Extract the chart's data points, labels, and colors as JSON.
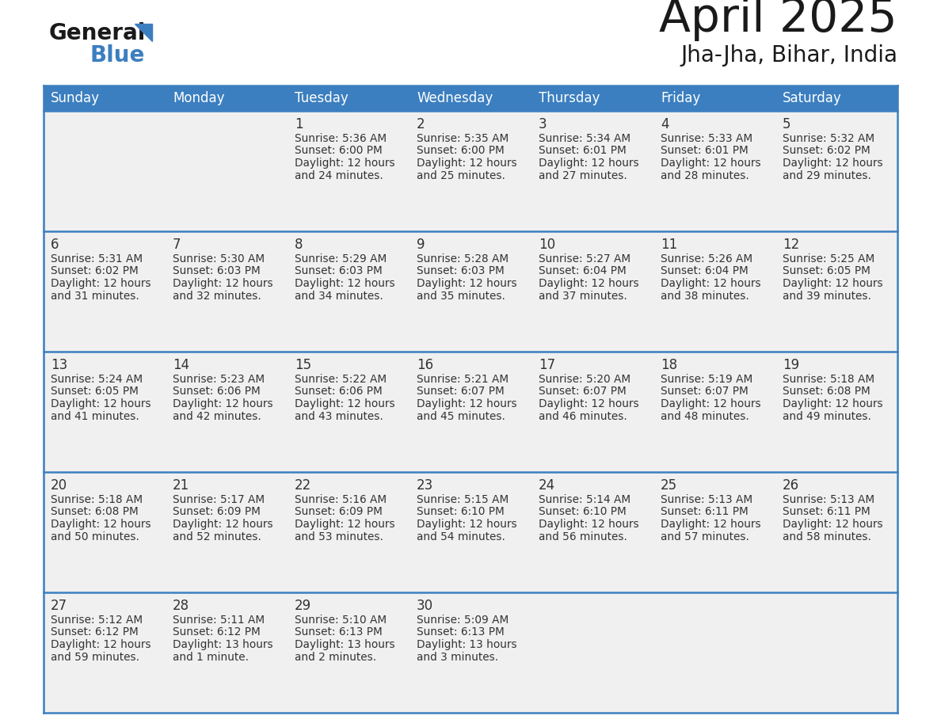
{
  "title": "April 2025",
  "subtitle": "Jha-Jha, Bihar, India",
  "header_bg": "#3c7fc0",
  "header_text_color": "#ffffff",
  "day_names": [
    "Sunday",
    "Monday",
    "Tuesday",
    "Wednesday",
    "Thursday",
    "Friday",
    "Saturday"
  ],
  "cell_bg": "#f0f0f0",
  "border_color": "#3c7fc0",
  "text_color": "#333333",
  "days": [
    {
      "day": 1,
      "col": 2,
      "row": 0,
      "sunrise": "5:36 AM",
      "sunset": "6:00 PM",
      "daylight_h": "12 hours",
      "daylight_m": "and 24 minutes."
    },
    {
      "day": 2,
      "col": 3,
      "row": 0,
      "sunrise": "5:35 AM",
      "sunset": "6:00 PM",
      "daylight_h": "12 hours",
      "daylight_m": "and 25 minutes."
    },
    {
      "day": 3,
      "col": 4,
      "row": 0,
      "sunrise": "5:34 AM",
      "sunset": "6:01 PM",
      "daylight_h": "12 hours",
      "daylight_m": "and 27 minutes."
    },
    {
      "day": 4,
      "col": 5,
      "row": 0,
      "sunrise": "5:33 AM",
      "sunset": "6:01 PM",
      "daylight_h": "12 hours",
      "daylight_m": "and 28 minutes."
    },
    {
      "day": 5,
      "col": 6,
      "row": 0,
      "sunrise": "5:32 AM",
      "sunset": "6:02 PM",
      "daylight_h": "12 hours",
      "daylight_m": "and 29 minutes."
    },
    {
      "day": 6,
      "col": 0,
      "row": 1,
      "sunrise": "5:31 AM",
      "sunset": "6:02 PM",
      "daylight_h": "12 hours",
      "daylight_m": "and 31 minutes."
    },
    {
      "day": 7,
      "col": 1,
      "row": 1,
      "sunrise": "5:30 AM",
      "sunset": "6:03 PM",
      "daylight_h": "12 hours",
      "daylight_m": "and 32 minutes."
    },
    {
      "day": 8,
      "col": 2,
      "row": 1,
      "sunrise": "5:29 AM",
      "sunset": "6:03 PM",
      "daylight_h": "12 hours",
      "daylight_m": "and 34 minutes."
    },
    {
      "day": 9,
      "col": 3,
      "row": 1,
      "sunrise": "5:28 AM",
      "sunset": "6:03 PM",
      "daylight_h": "12 hours",
      "daylight_m": "and 35 minutes."
    },
    {
      "day": 10,
      "col": 4,
      "row": 1,
      "sunrise": "5:27 AM",
      "sunset": "6:04 PM",
      "daylight_h": "12 hours",
      "daylight_m": "and 37 minutes."
    },
    {
      "day": 11,
      "col": 5,
      "row": 1,
      "sunrise": "5:26 AM",
      "sunset": "6:04 PM",
      "daylight_h": "12 hours",
      "daylight_m": "and 38 minutes."
    },
    {
      "day": 12,
      "col": 6,
      "row": 1,
      "sunrise": "5:25 AM",
      "sunset": "6:05 PM",
      "daylight_h": "12 hours",
      "daylight_m": "and 39 minutes."
    },
    {
      "day": 13,
      "col": 0,
      "row": 2,
      "sunrise": "5:24 AM",
      "sunset": "6:05 PM",
      "daylight_h": "12 hours",
      "daylight_m": "and 41 minutes."
    },
    {
      "day": 14,
      "col": 1,
      "row": 2,
      "sunrise": "5:23 AM",
      "sunset": "6:06 PM",
      "daylight_h": "12 hours",
      "daylight_m": "and 42 minutes."
    },
    {
      "day": 15,
      "col": 2,
      "row": 2,
      "sunrise": "5:22 AM",
      "sunset": "6:06 PM",
      "daylight_h": "12 hours",
      "daylight_m": "and 43 minutes."
    },
    {
      "day": 16,
      "col": 3,
      "row": 2,
      "sunrise": "5:21 AM",
      "sunset": "6:07 PM",
      "daylight_h": "12 hours",
      "daylight_m": "and 45 minutes."
    },
    {
      "day": 17,
      "col": 4,
      "row": 2,
      "sunrise": "5:20 AM",
      "sunset": "6:07 PM",
      "daylight_h": "12 hours",
      "daylight_m": "and 46 minutes."
    },
    {
      "day": 18,
      "col": 5,
      "row": 2,
      "sunrise": "5:19 AM",
      "sunset": "6:07 PM",
      "daylight_h": "12 hours",
      "daylight_m": "and 48 minutes."
    },
    {
      "day": 19,
      "col": 6,
      "row": 2,
      "sunrise": "5:18 AM",
      "sunset": "6:08 PM",
      "daylight_h": "12 hours",
      "daylight_m": "and 49 minutes."
    },
    {
      "day": 20,
      "col": 0,
      "row": 3,
      "sunrise": "5:18 AM",
      "sunset": "6:08 PM",
      "daylight_h": "12 hours",
      "daylight_m": "and 50 minutes."
    },
    {
      "day": 21,
      "col": 1,
      "row": 3,
      "sunrise": "5:17 AM",
      "sunset": "6:09 PM",
      "daylight_h": "12 hours",
      "daylight_m": "and 52 minutes."
    },
    {
      "day": 22,
      "col": 2,
      "row": 3,
      "sunrise": "5:16 AM",
      "sunset": "6:09 PM",
      "daylight_h": "12 hours",
      "daylight_m": "and 53 minutes."
    },
    {
      "day": 23,
      "col": 3,
      "row": 3,
      "sunrise": "5:15 AM",
      "sunset": "6:10 PM",
      "daylight_h": "12 hours",
      "daylight_m": "and 54 minutes."
    },
    {
      "day": 24,
      "col": 4,
      "row": 3,
      "sunrise": "5:14 AM",
      "sunset": "6:10 PM",
      "daylight_h": "12 hours",
      "daylight_m": "and 56 minutes."
    },
    {
      "day": 25,
      "col": 5,
      "row": 3,
      "sunrise": "5:13 AM",
      "sunset": "6:11 PM",
      "daylight_h": "12 hours",
      "daylight_m": "and 57 minutes."
    },
    {
      "day": 26,
      "col": 6,
      "row": 3,
      "sunrise": "5:13 AM",
      "sunset": "6:11 PM",
      "daylight_h": "12 hours",
      "daylight_m": "and 58 minutes."
    },
    {
      "day": 27,
      "col": 0,
      "row": 4,
      "sunrise": "5:12 AM",
      "sunset": "6:12 PM",
      "daylight_h": "12 hours",
      "daylight_m": "and 59 minutes."
    },
    {
      "day": 28,
      "col": 1,
      "row": 4,
      "sunrise": "5:11 AM",
      "sunset": "6:12 PM",
      "daylight_h": "13 hours",
      "daylight_m": "and 1 minute."
    },
    {
      "day": 29,
      "col": 2,
      "row": 4,
      "sunrise": "5:10 AM",
      "sunset": "6:13 PM",
      "daylight_h": "13 hours",
      "daylight_m": "and 2 minutes."
    },
    {
      "day": 30,
      "col": 3,
      "row": 4,
      "sunrise": "5:09 AM",
      "sunset": "6:13 PM",
      "daylight_h": "13 hours",
      "daylight_m": "and 3 minutes."
    }
  ]
}
